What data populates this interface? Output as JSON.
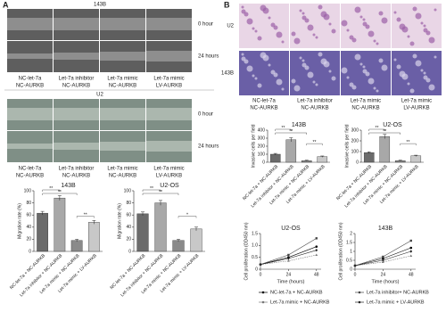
{
  "figure": {
    "panel_a": {
      "label": "A",
      "cell_lines": [
        "143B",
        "U2"
      ],
      "times": [
        "0 hour",
        "24 hours"
      ],
      "groups": [
        [
          "NC-let-7a",
          "NC-AURKB"
        ],
        [
          "Let-7a inhibitor",
          "NC-AURKB"
        ],
        [
          "Let-7a mimic",
          "NC-AURKB"
        ],
        [
          "Let-7a mimic",
          "LV-AURKB"
        ]
      ]
    },
    "panel_b": {
      "label": "B",
      "cell_lines": [
        "U2",
        "143B"
      ],
      "groups": [
        [
          "NC-let-7a",
          "NC-AURKB"
        ],
        [
          "Let-7a inhibitor",
          "NC-AURKB"
        ],
        [
          "Let-7a mimic",
          "NC-AURKB"
        ],
        [
          "Let-7a mimic",
          "LV-AURKB"
        ]
      ]
    }
  },
  "chart_data": [
    {
      "type": "bar",
      "title": "143B",
      "ylabel": "Migration rate (%)",
      "categories": [
        "NC-let-7a + NC-AURKB",
        "Let-7a inhibitor + NC-AURKB",
        "Let-7a mimic + NC-AURKB",
        "Let-7a mimic + LV-AURKB"
      ],
      "values": [
        63,
        88,
        18,
        48
      ],
      "errors": [
        3,
        4,
        2,
        3
      ],
      "colors": [
        "#6b6b6b",
        "#a8a8a8",
        "#8a8a8a",
        "#c8c8c8"
      ],
      "ylim": [
        0,
        100
      ],
      "yticks": [
        0,
        20,
        40,
        60,
        80,
        100
      ],
      "annotations": [
        "**",
        "**",
        "**"
      ]
    },
    {
      "type": "bar",
      "title": "U2-OS",
      "ylabel": "Migration rate (%)",
      "categories": [
        "NC-let-7a + NC-AURKB",
        "Let-7a inhibitor + NC-AURKB",
        "Let-7a mimic + NC-AURKB",
        "Let-7a mimic + LV-AURKB"
      ],
      "values": [
        62,
        80,
        18,
        37
      ],
      "errors": [
        3,
        4,
        2,
        3
      ],
      "colors": [
        "#6b6b6b",
        "#a8a8a8",
        "#8a8a8a",
        "#c8c8c8"
      ],
      "ylim": [
        0,
        100
      ],
      "yticks": [
        0,
        20,
        40,
        60,
        80,
        100
      ],
      "annotations": [
        "**",
        "**",
        "*"
      ]
    },
    {
      "type": "bar",
      "title": "143B",
      "ylabel": "Invasive cells per field",
      "categories": [
        "NC-let-7a + NC-AURKB",
        "Let-7a inhibitor + NC-AURKB",
        "Let-7a mimic + NC-AURKB",
        "Let-7a mimic + LV-AURKB"
      ],
      "values": [
        100,
        280,
        20,
        70
      ],
      "errors": [
        10,
        25,
        5,
        8
      ],
      "colors": [
        "#6b6b6b",
        "#a8a8a8",
        "#8a8a8a",
        "#c8c8c8"
      ],
      "ylim": [
        0,
        400
      ],
      "yticks": [
        0,
        100,
        200,
        300,
        400
      ],
      "annotations": [
        "**",
        "**",
        "**"
      ]
    },
    {
      "type": "bar",
      "title": "U2-OS",
      "ylabel": "Invasive cells per field",
      "categories": [
        "NC-let-7a + NC-AURKB",
        "Let-7a inhibitor + NC-AURKB",
        "Let-7a mimic + NC-AURKB",
        "Let-7a mimic + LV-AURKB"
      ],
      "values": [
        90,
        240,
        15,
        60
      ],
      "errors": [
        8,
        20,
        4,
        6
      ],
      "colors": [
        "#6b6b6b",
        "#a8a8a8",
        "#8a8a8a",
        "#c8c8c8"
      ],
      "ylim": [
        0,
        300
      ],
      "yticks": [
        0,
        100,
        200,
        300
      ],
      "annotations": [
        "**",
        "**",
        "**"
      ]
    },
    {
      "type": "line",
      "title": "U2-OS",
      "ylabel": "Cell proliferation (OD450 nm)",
      "xlabel": "Time (hours)",
      "x": [
        0,
        24,
        48
      ],
      "xlim": [
        0,
        52
      ],
      "xticks": [
        0,
        24,
        48
      ],
      "ylim": [
        0,
        1.5
      ],
      "yticks": [
        0,
        0.5,
        {
          "value": 1,
          "label": "1.0"
        },
        1.5
      ],
      "series": [
        {
          "name": "NC-let-7a + NC-AURKB",
          "color": "#000000",
          "values": [
            0.2,
            0.5,
            0.95
          ]
        },
        {
          "name": "Let-7a inhibitor+ NC-AURKB",
          "color": "#444444",
          "values": [
            0.2,
            0.6,
            1.3
          ]
        },
        {
          "name": "Let-7a mimic + NC-AURKB",
          "color": "#777777",
          "values": [
            0.2,
            0.35,
            0.6
          ]
        },
        {
          "name": "Let-7a mimic + LV-AURKB",
          "color": "#222222",
          "values": [
            0.2,
            0.45,
            0.8
          ]
        }
      ]
    },
    {
      "type": "line",
      "title": "143B",
      "ylabel": "Cell proliferation (OD450 nm)",
      "xlabel": "Time (hours)",
      "x": [
        0,
        24,
        48
      ],
      "xlim": [
        0,
        52
      ],
      "xticks": [
        0,
        24,
        48
      ],
      "ylim": [
        0,
        2
      ],
      "yticks": [
        0,
        0.5,
        1,
        1.5,
        2
      ],
      "series": [
        {
          "color": "#000000",
          "values": [
            0.2,
            0.6,
            1.2
          ]
        },
        {
          "color": "#444444",
          "values": [
            0.2,
            0.7,
            1.6
          ]
        },
        {
          "color": "#777777",
          "values": [
            0.2,
            0.4,
            0.75
          ]
        },
        {
          "color": "#222222",
          "values": [
            0.2,
            0.5,
            1.0
          ]
        }
      ]
    }
  ]
}
